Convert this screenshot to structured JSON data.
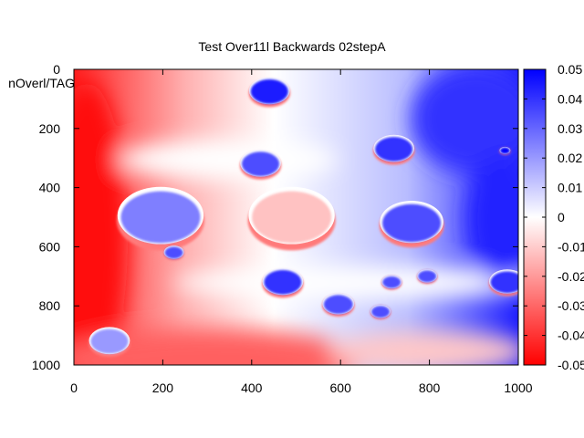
{
  "chart_data": {
    "type": "heatmap",
    "title": "Test Over11l Backwards 02stepA",
    "ylabel": "nOverl/TAG",
    "xlabel": "",
    "xlim": [
      0,
      1000
    ],
    "ylim": [
      0,
      1000
    ],
    "y_inverted": true,
    "x_ticks": [
      "0",
      "200",
      "400",
      "600",
      "800",
      "1000"
    ],
    "y_ticks": [
      "0",
      "200",
      "400",
      "600",
      "800",
      "1000"
    ],
    "colorbar": {
      "range": [
        -0.05,
        0.05
      ],
      "ticks": [
        "0.05",
        "0.04",
        "0.03",
        "0.02",
        "0.01",
        "0",
        "-0.01",
        "-0.02",
        "-0.03",
        "-0.04",
        "-0.05"
      ],
      "colors": {
        "low": "#ff0000",
        "mid": "#ffffff",
        "high": "#0000ff"
      }
    },
    "grid": false,
    "features": [
      {
        "kind": "disk",
        "x": 440,
        "y": 75,
        "r": 45,
        "value": 0.045
      },
      {
        "kind": "disk",
        "x": 720,
        "y": 270,
        "r": 45,
        "value": 0.04
      },
      {
        "kind": "disk",
        "x": 420,
        "y": 320,
        "r": 45,
        "value": 0.035
      },
      {
        "kind": "disk",
        "x": 195,
        "y": 500,
        "r": 95,
        "value": 0.025
      },
      {
        "kind": "disk",
        "x": 490,
        "y": 500,
        "r": 95,
        "value": -0.012
      },
      {
        "kind": "disk",
        "x": 760,
        "y": 520,
        "r": 70,
        "value": 0.035
      },
      {
        "kind": "disk",
        "x": 470,
        "y": 720,
        "r": 45,
        "value": 0.04
      },
      {
        "kind": "disk",
        "x": 595,
        "y": 795,
        "r": 35,
        "value": 0.035
      },
      {
        "kind": "disk",
        "x": 975,
        "y": 720,
        "r": 40,
        "value": 0.04
      },
      {
        "kind": "disk",
        "x": 80,
        "y": 920,
        "r": 45,
        "value": 0.02
      },
      {
        "kind": "disk",
        "x": 225,
        "y": 620,
        "r": 22,
        "value": 0.035
      },
      {
        "kind": "disk",
        "x": 715,
        "y": 720,
        "r": 22,
        "value": 0.035
      },
      {
        "kind": "disk",
        "x": 795,
        "y": 700,
        "r": 22,
        "value": 0.035
      },
      {
        "kind": "disk",
        "x": 690,
        "y": 820,
        "r": 22,
        "value": 0.035
      },
      {
        "kind": "disk",
        "x": 970,
        "y": 275,
        "r": 12,
        "value": 0.05
      }
    ]
  }
}
